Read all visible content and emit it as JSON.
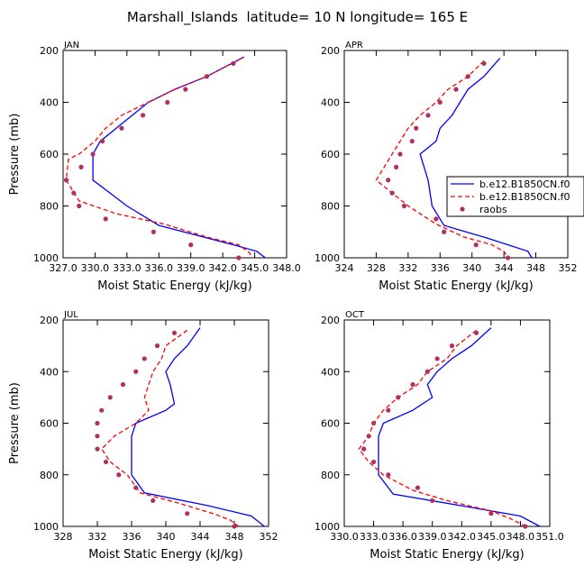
{
  "figure": {
    "title": "Marshall_Islands  latitude= 10 N longitude= 165 E"
  },
  "legend": {
    "entries": [
      "b.e12.B1850CN.f0",
      "b.e12.B1850CN.f0",
      "raobs"
    ]
  },
  "colors": {
    "series1": "#0000ff",
    "series2": "#ff0000",
    "series3": "#b03060"
  },
  "chart_data": [
    {
      "type": "line",
      "panel_label": "JAN",
      "xlabel": "Moist Static Energy (kJ/kg)",
      "ylabel": "Pressure (mb)",
      "xlim": [
        327,
        348
      ],
      "ylim": [
        1000,
        200
      ],
      "x_ticks": [
        "327.0",
        "330.0",
        "333.0",
        "336.0",
        "339.0",
        "342.0",
        "345.0",
        "348.0"
      ],
      "x_tick_values": [
        327,
        330,
        333,
        336,
        339,
        342,
        345,
        348
      ],
      "y_ticks": [
        "200",
        "400",
        "600",
        "800",
        "1000"
      ],
      "y_tick_values": [
        200,
        400,
        600,
        800,
        1000
      ],
      "series": [
        {
          "style": "solid",
          "points": [
            [
              344.0,
              225
            ],
            [
              340.5,
              300
            ],
            [
              337.5,
              350
            ],
            [
              335.0,
              400
            ],
            [
              333.5,
              450
            ],
            [
              332.0,
              500
            ],
            [
              330.5,
              550
            ],
            [
              329.8,
              600
            ],
            [
              329.8,
              650
            ],
            [
              329.8,
              700
            ],
            [
              333.0,
              800
            ],
            [
              336.0,
              875
            ],
            [
              343.0,
              950
            ],
            [
              345.2,
              975
            ],
            [
              346.0,
              1000
            ]
          ]
        },
        {
          "style": "dashed",
          "points": [
            [
              343.8,
              230
            ],
            [
              340.5,
              300
            ],
            [
              337.5,
              350
            ],
            [
              335.0,
              400
            ],
            [
              332.5,
              450
            ],
            [
              331.0,
              500
            ],
            [
              330.0,
              550
            ],
            [
              328.5,
              600
            ],
            [
              327.5,
              620
            ],
            [
              327.3,
              700
            ],
            [
              328.5,
              780
            ],
            [
              332.0,
              830
            ],
            [
              336.5,
              870
            ],
            [
              340.5,
              920
            ],
            [
              343.5,
              950
            ],
            [
              344.5,
              980
            ],
            [
              344.8,
              1000
            ]
          ]
        },
        {
          "style": "dots",
          "points": [
            [
              343.0,
              250
            ],
            [
              340.5,
              300
            ],
            [
              338.5,
              350
            ],
            [
              336.8,
              400
            ],
            [
              334.5,
              450
            ],
            [
              332.5,
              500
            ],
            [
              330.7,
              550
            ],
            [
              329.8,
              600
            ],
            [
              328.7,
              650
            ],
            [
              327.3,
              700
            ],
            [
              328.0,
              750
            ],
            [
              328.5,
              800
            ],
            [
              331.0,
              850
            ],
            [
              335.5,
              900
            ],
            [
              339.0,
              950
            ],
            [
              343.5,
              1000
            ]
          ]
        }
      ]
    },
    {
      "type": "line",
      "panel_label": "APR",
      "xlabel": "Moist Static Energy (kJ/kg)",
      "ylabel": "",
      "xlim": [
        324,
        352
      ],
      "ylim": [
        1000,
        200
      ],
      "x_ticks": [
        "324",
        "328",
        "332",
        "336",
        "340",
        "344",
        "348",
        "352"
      ],
      "x_tick_values": [
        324,
        328,
        332,
        336,
        340,
        344,
        348,
        352
      ],
      "y_ticks": [
        "200",
        "400",
        "600",
        "800",
        "1000"
      ],
      "y_tick_values": [
        200,
        400,
        600,
        800,
        1000
      ],
      "series": [
        {
          "style": "solid",
          "points": [
            [
              343.5,
              230
            ],
            [
              341.5,
              300
            ],
            [
              339.5,
              350
            ],
            [
              338.5,
              400
            ],
            [
              337.5,
              450
            ],
            [
              336.0,
              500
            ],
            [
              335.5,
              550
            ],
            [
              333.5,
              600
            ],
            [
              334.0,
              650
            ],
            [
              334.5,
              700
            ],
            [
              335.0,
              800
            ],
            [
              336.5,
              875
            ],
            [
              342.0,
              925
            ],
            [
              347.0,
              975
            ],
            [
              347.5,
              1000
            ]
          ]
        },
        {
          "style": "dashed",
          "points": [
            [
              341.5,
              240
            ],
            [
              339.5,
              300
            ],
            [
              337.0,
              350
            ],
            [
              335.5,
              400
            ],
            [
              333.5,
              450
            ],
            [
              332.0,
              500
            ],
            [
              331.0,
              550
            ],
            [
              330.0,
              600
            ],
            [
              329.0,
              650
            ],
            [
              328.0,
              700
            ],
            [
              330.0,
              750
            ],
            [
              332.0,
              800
            ],
            [
              335.5,
              870
            ],
            [
              339.0,
              920
            ],
            [
              342.5,
              950
            ],
            [
              344.0,
              975
            ],
            [
              344.5,
              1000
            ]
          ]
        },
        {
          "style": "dots",
          "points": [
            [
              341.5,
              250
            ],
            [
              339.5,
              300
            ],
            [
              338.0,
              350
            ],
            [
              336.0,
              400
            ],
            [
              334.5,
              450
            ],
            [
              333.0,
              500
            ],
            [
              332.5,
              550
            ],
            [
              331.0,
              600
            ],
            [
              330.5,
              650
            ],
            [
              329.5,
              700
            ],
            [
              330.0,
              750
            ],
            [
              331.5,
              800
            ],
            [
              335.5,
              850
            ],
            [
              336.5,
              900
            ],
            [
              340.5,
              950
            ],
            [
              344.5,
              1000
            ]
          ]
        }
      ]
    },
    {
      "type": "line",
      "panel_label": "JUL",
      "xlabel": "Moist Static Energy (kJ/kg)",
      "ylabel": "Pressure (mb)",
      "xlim": [
        328,
        352
      ],
      "ylim": [
        1000,
        200
      ],
      "x_ticks": [
        "328",
        "332",
        "336",
        "340",
        "344",
        "348",
        "352"
      ],
      "x_tick_values": [
        328,
        332,
        336,
        340,
        344,
        348,
        352
      ],
      "y_ticks": [
        "200",
        "400",
        "600",
        "800",
        "1000"
      ],
      "y_tick_values": [
        200,
        400,
        600,
        800,
        1000
      ],
      "series": [
        {
          "style": "solid",
          "points": [
            [
              344.0,
              230
            ],
            [
              342.5,
              300
            ],
            [
              341.0,
              350
            ],
            [
              340.0,
              400
            ],
            [
              340.5,
              450
            ],
            [
              341.0,
              525
            ],
            [
              340.0,
              550
            ],
            [
              336.5,
              600
            ],
            [
              336.0,
              650
            ],
            [
              336.0,
              700
            ],
            [
              336.0,
              800
            ],
            [
              337.5,
              870
            ],
            [
              345.0,
              920
            ],
            [
              350.0,
              960
            ],
            [
              351.5,
              1000
            ]
          ]
        },
        {
          "style": "dashed",
          "points": [
            [
              342.5,
              240
            ],
            [
              340.0,
              300
            ],
            [
              339.5,
              350
            ],
            [
              338.5,
              400
            ],
            [
              338.0,
              450
            ],
            [
              337.5,
              500
            ],
            [
              338.0,
              550
            ],
            [
              336.5,
              600
            ],
            [
              334.0,
              650
            ],
            [
              332.5,
              700
            ],
            [
              333.5,
              750
            ],
            [
              335.5,
              800
            ],
            [
              337.0,
              870
            ],
            [
              341.5,
              910
            ],
            [
              345.5,
              950
            ],
            [
              347.5,
              975
            ],
            [
              348.5,
              1000
            ]
          ]
        },
        {
          "style": "dots",
          "points": [
            [
              341.0,
              250
            ],
            [
              339.0,
              300
            ],
            [
              337.5,
              350
            ],
            [
              336.5,
              400
            ],
            [
              335.0,
              450
            ],
            [
              333.5,
              500
            ],
            [
              332.5,
              550
            ],
            [
              332.0,
              600
            ],
            [
              332.0,
              650
            ],
            [
              332.0,
              700
            ],
            [
              333.0,
              750
            ],
            [
              334.5,
              800
            ],
            [
              336.5,
              850
            ],
            [
              338.5,
              900
            ],
            [
              342.5,
              950
            ],
            [
              348.0,
              1000
            ]
          ]
        }
      ]
    },
    {
      "type": "line",
      "panel_label": "OCT",
      "xlabel": "Moist Static Energy (kJ/kg)",
      "ylabel": "",
      "xlim": [
        330,
        351
      ],
      "ylim": [
        1000,
        200
      ],
      "x_ticks": [
        "330.0",
        "333.0",
        "336.0",
        "339.0",
        "342.0",
        "345.0",
        "348.0",
        "351.0"
      ],
      "x_tick_values": [
        330,
        333,
        336,
        339,
        342,
        345,
        348,
        351
      ],
      "y_ticks": [
        "200",
        "400",
        "600",
        "800",
        "1000"
      ],
      "y_tick_values": [
        200,
        400,
        600,
        800,
        1000
      ],
      "series": [
        {
          "style": "solid",
          "points": [
            [
              345.0,
              230
            ],
            [
              343.0,
              300
            ],
            [
              341.0,
              350
            ],
            [
              339.5,
              400
            ],
            [
              338.5,
              450
            ],
            [
              339.0,
              500
            ],
            [
              337.0,
              550
            ],
            [
              334.0,
              600
            ],
            [
              333.5,
              650
            ],
            [
              333.5,
              700
            ],
            [
              333.5,
              800
            ],
            [
              335.0,
              875
            ],
            [
              342.0,
              920
            ],
            [
              348.0,
              960
            ],
            [
              350.0,
              1000
            ]
          ]
        },
        {
          "style": "dashed",
          "points": [
            [
              343.5,
              240
            ],
            [
              341.5,
              300
            ],
            [
              340.5,
              350
            ],
            [
              338.5,
              400
            ],
            [
              337.5,
              450
            ],
            [
              335.5,
              500
            ],
            [
              334.0,
              550
            ],
            [
              333.0,
              600
            ],
            [
              332.5,
              650
            ],
            [
              331.5,
              700
            ],
            [
              332.5,
              750
            ],
            [
              334.0,
              800
            ],
            [
              337.0,
              860
            ],
            [
              340.5,
              900
            ],
            [
              345.0,
              940
            ],
            [
              347.0,
              970
            ],
            [
              348.5,
              1000
            ]
          ]
        },
        {
          "style": "dots",
          "points": [
            [
              343.5,
              250
            ],
            [
              341.0,
              300
            ],
            [
              339.5,
              350
            ],
            [
              338.5,
              400
            ],
            [
              337.0,
              450
            ],
            [
              335.5,
              500
            ],
            [
              334.5,
              550
            ],
            [
              333.0,
              600
            ],
            [
              332.5,
              650
            ],
            [
              332.0,
              700
            ],
            [
              333.0,
              750
            ],
            [
              334.5,
              800
            ],
            [
              337.5,
              850
            ],
            [
              339.0,
              900
            ],
            [
              345.0,
              950
            ],
            [
              348.5,
              1000
            ]
          ]
        }
      ]
    }
  ]
}
